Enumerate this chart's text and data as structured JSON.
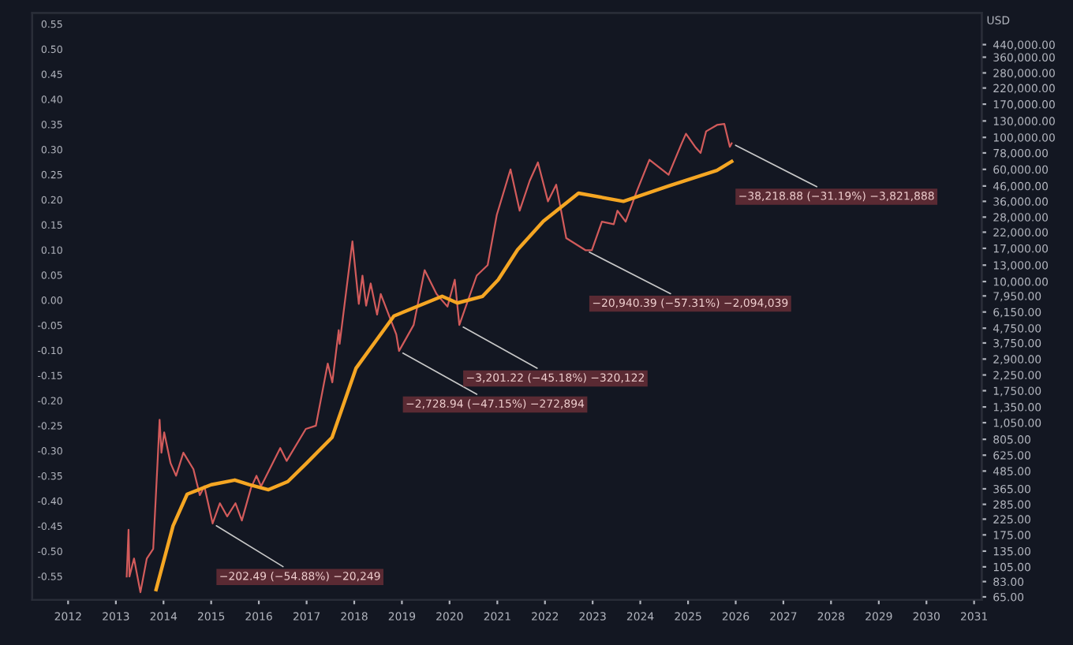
{
  "chart_data": {
    "type": "line",
    "x": [
      "2013-03-25",
      "2013-04-08",
      "2013-04-15",
      "2013-05-20",
      "2013-07-08",
      "2013-08-26",
      "2013-10-14",
      "2013-11-18",
      "2013-12-02",
      "2013-12-16",
      "2014-01-06",
      "2014-02-24",
      "2014-04-07",
      "2014-06-02",
      "2014-08-18",
      "2014-10-06",
      "2014-11-10",
      "2015-01-12",
      "2015-03-09",
      "2015-05-04",
      "2015-07-06",
      "2015-08-24",
      "2015-11-02",
      "2015-12-14",
      "2016-01-18",
      "2016-06-13",
      "2016-08-01",
      "2016-12-26",
      "2017-03-13",
      "2017-06-12",
      "2017-07-17",
      "2017-09-04",
      "2017-09-11",
      "2017-12-18",
      "2018-02-05",
      "2018-03-05",
      "2018-04-02",
      "2018-05-07",
      "2018-06-25",
      "2018-07-23",
      "2018-11-19",
      "2018-12-10",
      "2019-04-01",
      "2019-06-24",
      "2019-09-23",
      "2019-12-16",
      "2020-02-10",
      "2020-03-16",
      "2020-07-27",
      "2020-10-19",
      "2020-12-28",
      "2021-04-12",
      "2021-06-21",
      "2021-09-06",
      "2021-11-08",
      "2022-01-24",
      "2022-03-28",
      "2022-06-13",
      "2022-11-07",
      "2022-12-26",
      "2023-03-13",
      "2023-06-12",
      "2023-07-10",
      "2023-09-11",
      "2023-12-04",
      "2024-03-11",
      "2024-08-05",
      "2024-11-11",
      "2024-12-16",
      "2025-02-24",
      "2025-04-07",
      "2025-05-19",
      "2025-08-11",
      "2025-10-06",
      "2025-11-17",
      "2025-12-01"
    ],
    "series": [
      {
        "color": "#d25b5b",
        "values": [
          90,
          190,
          90,
          120,
          70,
          120,
          140,
          600,
          1100,
          650,
          900,
          550,
          450,
          650,
          500,
          330,
          380,
          210,
          290,
          235,
          290,
          220,
          370,
          450,
          380,
          700,
          570,
          950,
          1000,
          2700,
          2000,
          4600,
          3700,
          19000,
          7000,
          11000,
          6800,
          9700,
          5900,
          8200,
          4300,
          3300,
          5000,
          12000,
          8200,
          6700,
          10300,
          5000,
          11000,
          13000,
          29000,
          60000,
          31000,
          50000,
          67000,
          36000,
          47000,
          20000,
          16500,
          16500,
          26000,
          25000,
          31000,
          26000,
          42000,
          70000,
          55000,
          90000,
          106000,
          86000,
          78000,
          110000,
          122000,
          124000,
          86000,
          91000
        ]
      },
      {
        "color": "#f5a623",
        "x": [
          "2013-11-05",
          "2014-03-15",
          "2014-07-01",
          "2015-01-01",
          "2015-07-01",
          "2015-10-20",
          "2016-03-15",
          "2016-08-10",
          "2017-01-01",
          "2017-07-15",
          "2018-01-15",
          "2018-11-01",
          "2019-11-05",
          "2020-03-01",
          "2020-09-10",
          "2021-01-08",
          "2021-06-05",
          "2021-12-20",
          "2022-09-15",
          "2023-08-25",
          "2024-08-05",
          "2025-08-10",
          "2025-12-01"
        ],
        "values": [
          73,
          202,
          335,
          390,
          420,
          390,
          360,
          410,
          550,
          830,
          2510,
          5770,
          7900,
          7100,
          7900,
          10300,
          16600,
          26200,
          41000,
          36000,
          46000,
          59000,
          68000
        ]
      }
    ],
    "xlim": [
      "2011-04-01",
      "2031-03-01"
    ],
    "xticks": [
      "2012",
      "2013",
      "2014",
      "2015",
      "2016",
      "2017",
      "2018",
      "2019",
      "2020",
      "2021",
      "2022",
      "2023",
      "2024",
      "2025",
      "2026",
      "2027",
      "2028",
      "2029",
      "2030",
      "2031"
    ],
    "log": "y",
    "ylim": [
      62,
      730000
    ],
    "yticks": [
      {
        "value": 440000,
        "label": "440,000.00"
      },
      {
        "value": 360000,
        "label": "360,000.00"
      },
      {
        "value": 280000,
        "label": "280,000.00"
      },
      {
        "value": 220000,
        "label": "220,000.00"
      },
      {
        "value": 170000,
        "label": "170,000.00"
      },
      {
        "value": 130000,
        "label": "130,000.00"
      },
      {
        "value": 100000,
        "label": "100,000.00"
      },
      {
        "value": 78000,
        "label": "78,000.00"
      },
      {
        "value": 60000,
        "label": "60,000.00"
      },
      {
        "value": 46000,
        "label": "46,000.00"
      },
      {
        "value": 36000,
        "label": "36,000.00"
      },
      {
        "value": 28000,
        "label": "28,000.00"
      },
      {
        "value": 22000,
        "label": "22,000.00"
      },
      {
        "value": 17000,
        "label": "17,000.00"
      },
      {
        "value": 13000,
        "label": "13,000.00"
      },
      {
        "value": 10000,
        "label": "10,000.00"
      },
      {
        "value": 7950,
        "label": "7,950.00"
      },
      {
        "value": 6150,
        "label": "6,150.00"
      },
      {
        "value": 4750,
        "label": "4,750.00"
      },
      {
        "value": 3750,
        "label": "3,750.00"
      },
      {
        "value": 2900,
        "label": "2,900.00"
      },
      {
        "value": 2250,
        "label": "2,250.00"
      },
      {
        "value": 1750,
        "label": "1,750.00"
      },
      {
        "value": 1350,
        "label": "1,350.00"
      },
      {
        "value": 1050,
        "label": "1,050.00"
      },
      {
        "value": 805,
        "label": "805.00"
      },
      {
        "value": 625,
        "label": "625.00"
      },
      {
        "value": 485,
        "label": "485.00"
      },
      {
        "value": 365,
        "label": "365.00"
      },
      {
        "value": 285,
        "label": "285.00"
      },
      {
        "value": 225,
        "label": "225.00"
      },
      {
        "value": 175,
        "label": "175.00"
      },
      {
        "value": 135,
        "label": "135.00"
      },
      {
        "value": 105,
        "label": "105.00"
      },
      {
        "value": 83,
        "label": "83.00"
      },
      {
        "value": 65,
        "label": "65.00"
      }
    ],
    "ylabel": "USD",
    "y2lim": [
      -0.597,
      0.572
    ],
    "y2ticks": [
      {
        "value": 0.55,
        "label": "0.55"
      },
      {
        "value": 0.5,
        "label": "0.50"
      },
      {
        "value": 0.45,
        "label": "0.45"
      },
      {
        "value": 0.4,
        "label": "0.40"
      },
      {
        "value": 0.35,
        "label": "0.35"
      },
      {
        "value": 0.3,
        "label": "0.30"
      },
      {
        "value": 0.25,
        "label": "0.25"
      },
      {
        "value": 0.2,
        "label": "0.20"
      },
      {
        "value": 0.15,
        "label": "0.15"
      },
      {
        "value": 0.1,
        "label": "0.10"
      },
      {
        "value": 0.05,
        "label": "0.05"
      },
      {
        "value": 0,
        "label": "0.00"
      },
      {
        "value": -0.05,
        "label": "-0.05"
      },
      {
        "value": -0.1,
        "label": "-0.10"
      },
      {
        "value": -0.15,
        "label": "-0.15"
      },
      {
        "value": -0.2,
        "label": "-0.20"
      },
      {
        "value": -0.25,
        "label": "-0.25"
      },
      {
        "value": -0.3,
        "label": "-0.30"
      },
      {
        "value": -0.35,
        "label": "-0.35"
      },
      {
        "value": -0.4,
        "label": "-0.40"
      },
      {
        "value": -0.45,
        "label": "-0.45"
      },
      {
        "value": -0.5,
        "label": "-0.50"
      },
      {
        "value": -0.55,
        "label": "-0.55"
      }
    ],
    "annotations": [
      {
        "text": "−202.49 (−54.88%) −20,249",
        "x": "2015-01-12",
        "y": 210
      },
      {
        "text": "−2,728.94 (−47.15%) −272,894",
        "x": "2018-12-10",
        "y": 3300
      },
      {
        "text": "−3,201.22 (−45.18%) −320,122",
        "x": "2020-03-16",
        "y": 5000
      },
      {
        "text": "−20,940.39 (−57.31%) −2,094,039",
        "x": "2022-11-07",
        "y": 16500
      },
      {
        "text": "−38,218.88 (−31.19%) −3,821,888",
        "x": "2025-12-01",
        "y": 91000
      }
    ]
  }
}
